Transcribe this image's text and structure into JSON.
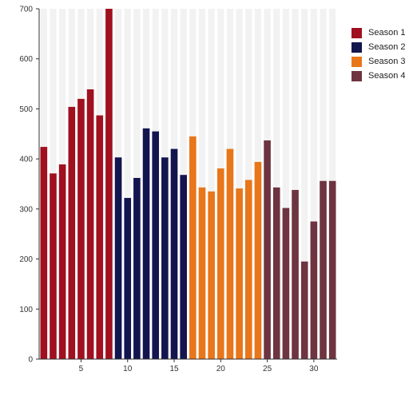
{
  "chart_data": {
    "type": "bar",
    "x_ticks": [
      "5",
      "10",
      "15",
      "20",
      "25",
      "30"
    ],
    "y_ticks": [
      "0",
      "100",
      "200",
      "300",
      "400",
      "500",
      "600",
      "700"
    ],
    "ylim": [
      0,
      700
    ],
    "xlim": [
      0.5,
      32.5
    ],
    "grid": "alternating vertical bands",
    "legend_position": "right",
    "series": [
      {
        "name": "Season 1",
        "color": "#a0101f",
        "x": [
          1,
          2,
          3,
          4,
          5,
          6,
          7,
          8
        ],
        "values": [
          424,
          371,
          389,
          504,
          520,
          539,
          487,
          700
        ]
      },
      {
        "name": "Season 2",
        "color": "#13154f",
        "x": [
          9,
          10,
          11,
          12,
          13,
          14,
          15,
          16
        ],
        "values": [
          403,
          322,
          362,
          461,
          455,
          403,
          420,
          368
        ]
      },
      {
        "name": "Season 3",
        "color": "#e8761a",
        "x": [
          17,
          18,
          19,
          20,
          21,
          22,
          23,
          24
        ],
        "values": [
          445,
          343,
          335,
          381,
          420,
          341,
          358,
          394
        ]
      },
      {
        "name": "Season 4",
        "color": "#6e3440",
        "x": [
          25,
          26,
          27,
          28,
          29,
          30,
          31,
          32
        ],
        "values": [
          437,
          343,
          302,
          338,
          195,
          275,
          356,
          356
        ]
      }
    ]
  }
}
